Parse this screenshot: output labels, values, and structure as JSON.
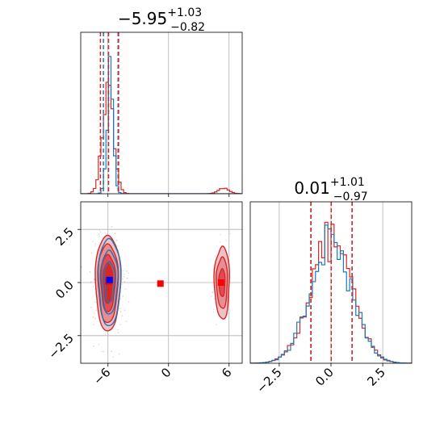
{
  "chart_data": {
    "type": "corner",
    "series": [
      {
        "name": "",
        "color": "#1f77b4"
      },
      {
        "name": "",
        "color": "#d62728"
      }
    ],
    "marginal_x": {
      "title": {
        "main": "−5.95",
        "sup": "+1.03",
        "sub": "−0.82"
      },
      "xlim": [
        -8.7,
        7.3
      ],
      "bin_width": 0.25,
      "blue_peak_at": -5.8,
      "red_modes": [
        {
          "center": -6.0,
          "sigma": 0.55,
          "weight": 0.95
        },
        {
          "center": 5.5,
          "sigma": 0.55,
          "weight": 0.05
        }
      ],
      "quantiles_blue": [
        -6.45,
        -5.95,
        -5.0
      ],
      "quantiles_red": [
        -6.75,
        -5.95,
        -4.95
      ]
    },
    "marginal_y": {
      "title": {
        "main": "0.01",
        "sup": "+1.01",
        "sub": "−0.97"
      },
      "xlim": [
        -3.9,
        3.9
      ],
      "bin_width": 0.15,
      "quantiles_blue": [
        -0.97,
        0.01,
        1.02
      ],
      "quantiles_red": [
        -0.97,
        0.01,
        1.02
      ]
    },
    "joint": {
      "xlim": [
        -8.7,
        7.3
      ],
      "ylim": [
        -3.8,
        3.8
      ],
      "blue_point": {
        "x": -5.85,
        "y": 0.12
      },
      "red_points": [
        {
          "x": -5.95,
          "y": 0.05
        },
        {
          "x": -0.8,
          "y": -0.05
        },
        {
          "x": 5.2,
          "y": 0.0
        }
      ]
    },
    "x_ticks_param1": [
      "−6",
      "0",
      "6"
    ],
    "x_ticks_param2": [
      "−2.5",
      "0.0",
      "2.5"
    ],
    "y_ticks_joint": [
      "2.5",
      "0.0",
      "−2.5"
    ],
    "grid": true
  }
}
